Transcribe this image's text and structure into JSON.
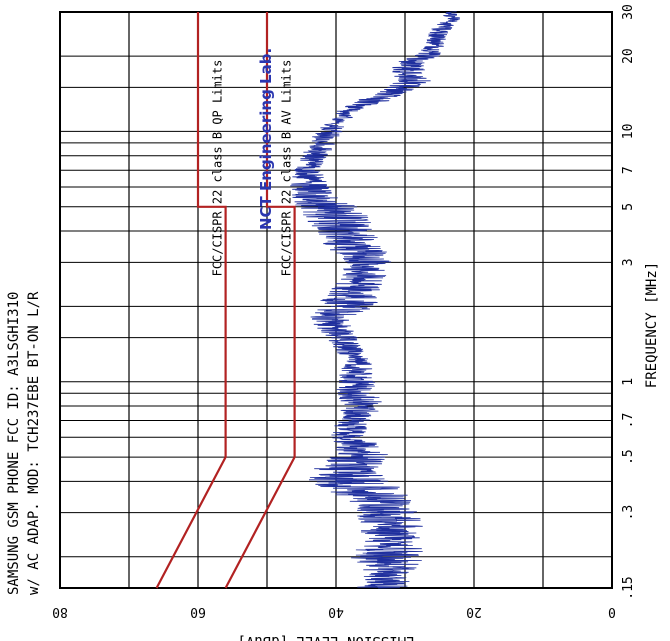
{
  "header": {
    "title_line1": "SAMSUNG GSM PHONE FCC ID: A3LSGHI310",
    "title_line2": "w/ AC ADAP. MOD: TCH237EBE BT-ON L/R",
    "lab_stamp": "NCT Engineering Lab."
  },
  "colors": {
    "grid": "#000000",
    "limit_lines": "#b22222",
    "emission_trace": "#1f2f9e",
    "lab_stamp": "#2a36b0"
  },
  "chart_data": {
    "type": "line",
    "title": "SAMSUNG GSM PHONE FCC ID: A3LSGHI310 w/ AC ADAP. MOD: TCH237EBE BT-ON L/R",
    "xlabel": "FREQUENCY [MHz]",
    "ylabel": "EMISSION LEVEL [dBuV]",
    "x_scale": "log",
    "xlim": [
      0.15,
      30
    ],
    "ylim": [
      0,
      80
    ],
    "x_ticks": [
      {
        "value": 0.15,
        "label": ".15"
      },
      {
        "value": 0.3,
        "label": ".3"
      },
      {
        "value": 0.5,
        "label": ".5"
      },
      {
        "value": 0.7,
        "label": ".7"
      },
      {
        "value": 1,
        "label": "1"
      },
      {
        "value": 3,
        "label": "3"
      },
      {
        "value": 5,
        "label": "5"
      },
      {
        "value": 7,
        "label": "7"
      },
      {
        "value": 10,
        "label": "10"
      },
      {
        "value": 20,
        "label": "20"
      },
      {
        "value": 30,
        "label": "30"
      }
    ],
    "y_ticks": [
      {
        "value": 0,
        "label": "0"
      },
      {
        "value": 20,
        "label": "20"
      },
      {
        "value": 40,
        "label": "40"
      },
      {
        "value": 60,
        "label": "60"
      },
      {
        "value": 80,
        "label": "80"
      }
    ],
    "grid": true,
    "limits": [
      {
        "name": "FCC/CISPR 22 class B QP Limits",
        "x": [
          0.15,
          0.5,
          5,
          5,
          30
        ],
        "y": [
          66,
          56,
          56,
          60,
          60
        ]
      },
      {
        "name": "FCC/CISPR 22 class B AV Limits",
        "x": [
          0.15,
          0.5,
          5,
          5,
          30
        ],
        "y": [
          56,
          46,
          46,
          50,
          50
        ]
      }
    ],
    "series": [
      {
        "x": [
          0.15,
          0.17,
          0.2,
          0.23,
          0.27,
          0.3,
          0.35,
          0.4,
          0.45,
          0.5,
          0.55,
          0.6,
          0.7,
          0.8,
          0.9,
          1.0,
          1.2,
          1.5,
          1.8,
          2.0,
          2.5,
          3.0,
          3.5,
          4.0,
          4.5,
          5.0,
          5.5,
          6.0,
          7.0,
          8.0,
          9.0,
          10,
          11,
          12,
          13,
          14,
          15,
          16,
          17,
          18,
          19,
          20,
          22,
          24,
          26,
          28,
          30
        ],
        "y_min": [
          28,
          29,
          27,
          28,
          27,
          28,
          29,
          32,
          34,
          32,
          33,
          36,
          35,
          33,
          34,
          34,
          35,
          37,
          38,
          34,
          33,
          32,
          33,
          34,
          35,
          37,
          40,
          41,
          42,
          41,
          40,
          39,
          38,
          37,
          33,
          30,
          28,
          26,
          27,
          27,
          27,
          25,
          24,
          24,
          23,
          22,
          22
        ],
        "y_max": [
          37,
          36,
          38,
          36,
          37,
          37,
          40,
          44,
          44,
          41,
          40,
          41,
          40,
          39,
          40,
          40,
          39,
          42,
          44,
          43,
          40,
          39,
          42,
          43,
          45,
          46,
          47,
          47,
          46,
          45,
          44,
          43,
          41,
          40,
          38,
          35,
          33,
          31,
          32,
          32,
          31,
          29,
          27,
          27,
          26,
          25,
          24
        ]
      }
    ],
    "vertical_lines_mhz": [
      0.15,
      0.2,
      0.3,
      0.4,
      0.5,
      0.6,
      0.7,
      0.8,
      0.9,
      1.0,
      1.5,
      2.0,
      3.0,
      4.0,
      5.0,
      6.0,
      7.0,
      8.0,
      9.0,
      10,
      15,
      20,
      30
    ]
  }
}
